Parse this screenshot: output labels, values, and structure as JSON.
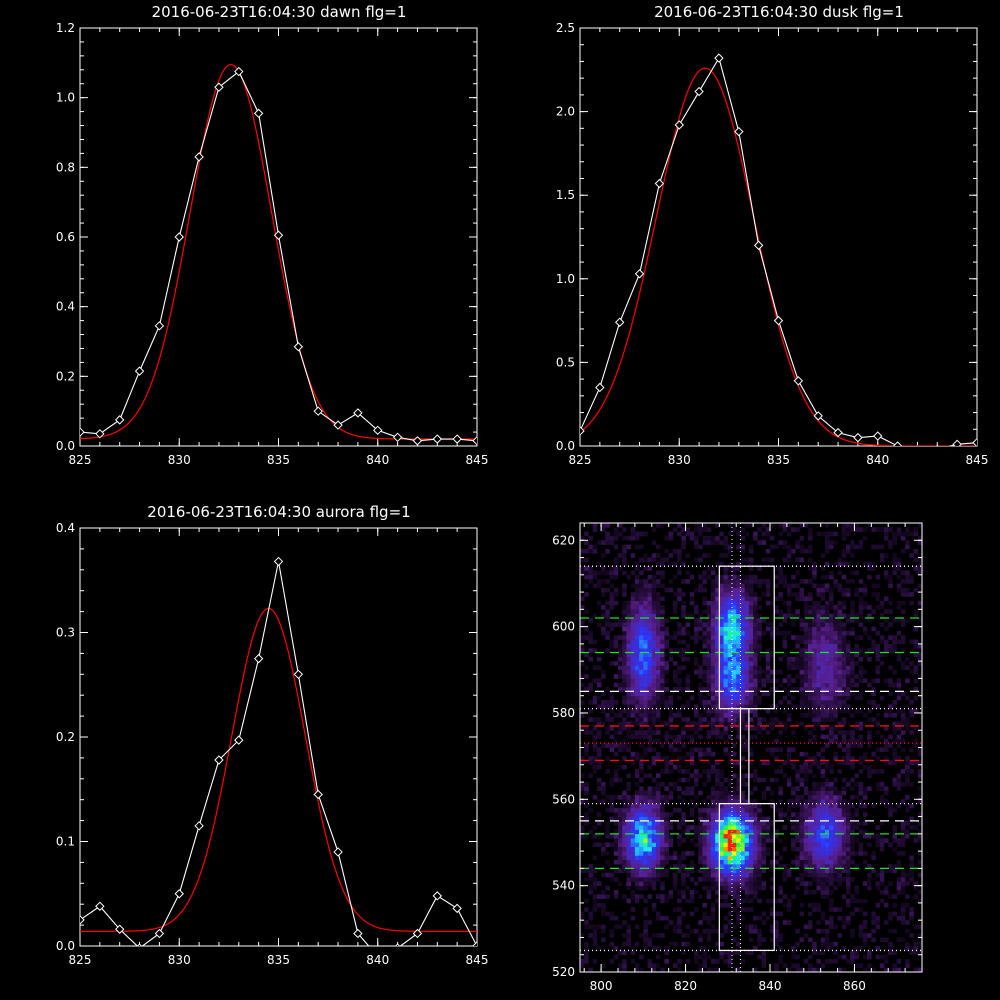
{
  "chart_data": [
    {
      "type": "line",
      "title": "2016-06-23T16:04:30 dawn flg=1",
      "xlabel": "",
      "ylabel": "",
      "xlim": [
        825,
        845
      ],
      "ylim": [
        0,
        1.2
      ],
      "xticks": [
        "825",
        "830",
        "835",
        "840",
        "845"
      ],
      "yticks": [
        "0.0",
        "0.2",
        "0.4",
        "0.6",
        "0.8",
        "1.0",
        "1.2"
      ],
      "grid": false,
      "series": [
        {
          "style": "data-diamonds",
          "color": "#ffffff",
          "x": [
            825,
            826,
            827,
            828,
            829,
            830,
            831,
            832,
            833,
            834,
            835,
            836,
            837,
            838,
            839,
            840,
            841,
            842,
            843,
            844,
            845
          ],
          "y": [
            0.04,
            0.035,
            0.075,
            0.215,
            0.345,
            0.6,
            0.83,
            1.03,
            1.075,
            0.955,
            0.605,
            0.285,
            0.1,
            0.06,
            0.095,
            0.045,
            0.025,
            0.015,
            0.02,
            0.02,
            0.015
          ]
        },
        {
          "style": "gaussian-fit",
          "color": "#ff0000",
          "amp": 1.075,
          "center": 832.6,
          "sigma": 2.05,
          "offset": 0.02
        }
      ]
    },
    {
      "type": "line",
      "title": "2016-06-23T16:04:30 dusk flg=1",
      "xlabel": "",
      "ylabel": "",
      "xlim": [
        825,
        845
      ],
      "ylim": [
        0,
        2.5
      ],
      "xticks": [
        "825",
        "830",
        "835",
        "840",
        "845"
      ],
      "yticks": [
        "0.0",
        "0.5",
        "1.0",
        "1.5",
        "2.0",
        "2.5"
      ],
      "grid": false,
      "series": [
        {
          "style": "data-diamonds",
          "color": "#ffffff",
          "x": [
            825,
            826,
            827,
            828,
            829,
            830,
            831,
            832,
            833,
            834,
            835,
            836,
            837,
            838,
            839,
            840,
            841,
            842,
            843,
            844,
            845
          ],
          "y": [
            0.09,
            0.35,
            0.74,
            1.03,
            1.57,
            1.92,
            2.12,
            2.32,
            1.88,
            1.2,
            0.75,
            0.39,
            0.18,
            0.08,
            0.05,
            0.06,
            0.0,
            -0.03,
            -0.02,
            0.01,
            0.02
          ]
        },
        {
          "style": "gaussian-fit",
          "color": "#ff0000",
          "amp": 2.26,
          "center": 831.3,
          "sigma": 2.45,
          "offset": 0.0
        }
      ]
    },
    {
      "type": "line",
      "title": "2016-06-23T16:04:30 aurora flg=1",
      "xlabel": "",
      "ylabel": "",
      "xlim": [
        825,
        845
      ],
      "ylim": [
        0,
        0.4
      ],
      "xticks": [
        "825",
        "830",
        "835",
        "840",
        "845"
      ],
      "yticks": [
        "0.0",
        "0.1",
        "0.2",
        "0.3",
        "0.4"
      ],
      "grid": false,
      "series": [
        {
          "style": "data-diamonds",
          "color": "#ffffff",
          "x": [
            825,
            826,
            827,
            828,
            829,
            830,
            831,
            832,
            833,
            834,
            835,
            836,
            837,
            838,
            839,
            840,
            841,
            842,
            843,
            844,
            845
          ],
          "y": [
            0.025,
            0.038,
            0.016,
            -0.002,
            0.012,
            0.05,
            0.115,
            0.178,
            0.197,
            0.275,
            0.368,
            0.26,
            0.145,
            0.09,
            0.012,
            -0.01,
            -0.002,
            0.012,
            0.048,
            0.036,
            0.0
          ]
        },
        {
          "style": "gaussian-fit",
          "color": "#ff0000",
          "amp": 0.309,
          "center": 834.5,
          "sigma": 1.85,
          "offset": 0.014
        }
      ]
    },
    {
      "type": "heatmap",
      "title": "",
      "xlabel": "",
      "ylabel": "",
      "xlim": [
        795,
        876
      ],
      "ylim": [
        520,
        624
      ],
      "xticks": [
        "800",
        "820",
        "840",
        "860"
      ],
      "yticks": [
        "520",
        "540",
        "560",
        "580",
        "600",
        "620"
      ],
      "colormap": [
        "#000000",
        "#5a1f8f",
        "#2b36ff",
        "#1ee6ff",
        "#1cff3a",
        "#ffff00",
        "#ff1e00"
      ],
      "blobs": [
        {
          "x": 810,
          "y": 594,
          "sx": 2.4,
          "sy": 7,
          "peak": 0.4
        },
        {
          "x": 810,
          "y": 551,
          "sx": 2.6,
          "sy": 4.5,
          "peak": 0.62
        },
        {
          "x": 831,
          "y": 600,
          "sx": 2.6,
          "sy": 5,
          "peak": 0.55
        },
        {
          "x": 831,
          "y": 588,
          "sx": 2.6,
          "sy": 5,
          "peak": 0.42
        },
        {
          "x": 831,
          "y": 550,
          "sx": 3,
          "sy": 4.5,
          "peak": 1.0
        },
        {
          "x": 853,
          "y": 552,
          "sx": 3,
          "sy": 5,
          "peak": 0.36
        },
        {
          "x": 853,
          "y": 591,
          "sx": 3.2,
          "sy": 7,
          "peak": 0.18
        }
      ],
      "vlines": [
        {
          "x": 831,
          "color": "#ffffff",
          "style": "dotted"
        },
        {
          "x": 833,
          "color": "#ffffff",
          "style": "dotted"
        }
      ],
      "hlines": [
        {
          "y": 614,
          "color": "#ffffff",
          "style": "dotted"
        },
        {
          "y": 602,
          "color": "#22dd22",
          "style": "dashed"
        },
        {
          "y": 594,
          "color": "#22dd22",
          "style": "dashed"
        },
        {
          "y": 585,
          "color": "#ffffff",
          "style": "dashed"
        },
        {
          "y": 581,
          "color": "#ffffff",
          "style": "dotted"
        },
        {
          "y": 577,
          "color": "#ee1111",
          "style": "dashed"
        },
        {
          "y": 573,
          "color": "#ee1111",
          "style": "dotted"
        },
        {
          "y": 569,
          "color": "#ee1111",
          "style": "dashed"
        },
        {
          "y": 559,
          "color": "#ffffff",
          "style": "dotted"
        },
        {
          "y": 555,
          "color": "#ffffff",
          "style": "dashed"
        },
        {
          "y": 552,
          "color": "#22dd22",
          "style": "dashed"
        },
        {
          "y": 544,
          "color": "#22dd22",
          "style": "dashed"
        },
        {
          "y": 525,
          "color": "#ffffff",
          "style": "dotted"
        }
      ],
      "boxes": [
        {
          "x0": 828,
          "x1": 841,
          "y0": 581,
          "y1": 614
        },
        {
          "x0": 828,
          "x1": 841,
          "y0": 525,
          "y1": 559
        },
        {
          "x0": 833,
          "x1": 835,
          "y0": 559,
          "y1": 581
        }
      ]
    }
  ]
}
